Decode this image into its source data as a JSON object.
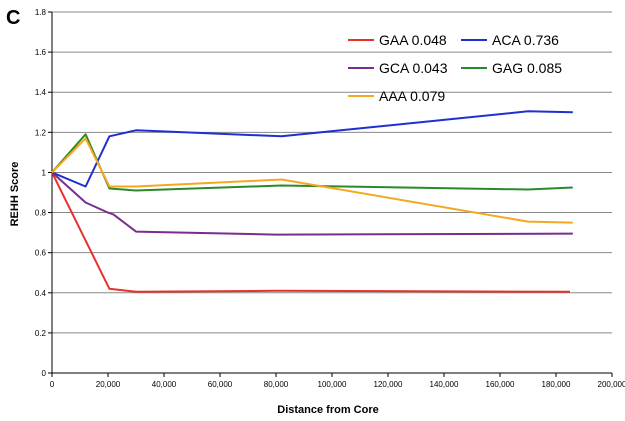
{
  "chart_data": {
    "type": "line",
    "panel_label": "C",
    "title": "",
    "xlabel": "Distance from Core",
    "ylabel": "REHH Score",
    "xlim": [
      0,
      200000
    ],
    "ylim": [
      0,
      1.8
    ],
    "xticks": [
      0,
      20000,
      40000,
      60000,
      80000,
      100000,
      120000,
      140000,
      160000,
      180000,
      200000
    ],
    "xtick_labels": [
      "0",
      "20,000",
      "40,000",
      "60,000",
      "80,000",
      "100,000",
      "120,000",
      "140,000",
      "160,000",
      "180,000",
      "200,000"
    ],
    "yticks": [
      0,
      0.2,
      0.4,
      0.6,
      0.8,
      1,
      1.2,
      1.4,
      1.6,
      1.8
    ],
    "ytick_labels": [
      "0",
      "0.2",
      "0.4",
      "0.6",
      "0.8",
      "1",
      "1.2",
      "1.4",
      "1.6",
      "1.8"
    ],
    "grid": "horizontal",
    "legend_position": "top-right",
    "series": [
      {
        "name": "GAA 0.048",
        "color": "#e8312a",
        "x": [
          0,
          20500,
          30000,
          80000,
          185000
        ],
        "y": [
          1.0,
          0.42,
          0.405,
          0.41,
          0.405
        ]
      },
      {
        "name": "ACA 0.736",
        "color": "#1f2fd0",
        "x": [
          0,
          12000,
          20500,
          30000,
          82000,
          170000,
          186000
        ],
        "y": [
          1.0,
          0.93,
          1.18,
          1.21,
          1.18,
          1.305,
          1.3
        ]
      },
      {
        "name": "GCA 0.043",
        "color": "#7a2d8f",
        "x": [
          0,
          12000,
          20000,
          22000,
          30000,
          80000,
          186000
        ],
        "y": [
          1.0,
          0.85,
          0.8,
          0.79,
          0.705,
          0.69,
          0.695
        ]
      },
      {
        "name": "GAG 0.085",
        "color": "#2a8a2a",
        "x": [
          0,
          12000,
          20500,
          30000,
          82000,
          170000,
          186000
        ],
        "y": [
          1.0,
          1.19,
          0.92,
          0.91,
          0.935,
          0.915,
          0.925
        ]
      },
      {
        "name": "AAA 0.079",
        "color": "#f4a81f",
        "x": [
          0,
          12000,
          20500,
          30000,
          82000,
          170000,
          186000
        ],
        "y": [
          1.0,
          1.17,
          0.93,
          0.93,
          0.965,
          0.755,
          0.75
        ]
      }
    ]
  }
}
